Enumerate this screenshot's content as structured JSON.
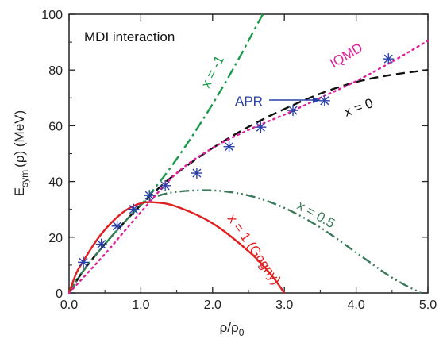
{
  "chart_data": {
    "type": "line",
    "xlabel": "ρ/ρ0",
    "ylabel": "Esym(ρ) (MeV)",
    "xlabel_parts": {
      "main": "ρ/ρ",
      "sub": "0"
    },
    "ylabel_parts": {
      "main": "E",
      "sub": "sym",
      "rest": "(ρ) (MeV)"
    },
    "xlim": [
      0,
      5
    ],
    "ylim": [
      0,
      100
    ],
    "xticks": [
      "0.0",
      "1.0",
      "2.0",
      "3.0",
      "4.0",
      "5.0"
    ],
    "yticks": [
      "0",
      "20",
      "40",
      "60",
      "80",
      "100"
    ],
    "grid": false,
    "inset_label": "MDI interaction",
    "series": [
      {
        "name": "x = -1",
        "color": "#1a9a4a",
        "dash": "dashdot",
        "x": [
          0,
          0.1,
          0.2,
          0.3,
          0.4,
          0.6,
          0.8,
          1.0,
          1.2,
          1.4,
          1.6,
          1.8,
          2.0,
          2.2,
          2.4,
          2.6,
          2.7
        ],
        "y": [
          0,
          4.5,
          8,
          11.3,
          14.5,
          20.5,
          26.2,
          31.6,
          37.8,
          44.5,
          51.8,
          59.6,
          67.8,
          76.5,
          85.7,
          95.3,
          100
        ]
      },
      {
        "name": "x = 0",
        "color": "#111111",
        "dash": "dashed",
        "x": [
          0,
          0.2,
          0.4,
          0.6,
          0.8,
          1.0,
          1.2,
          1.5,
          2.0,
          2.5,
          3.0,
          3.5,
          4.0,
          4.5,
          5.0
        ],
        "y": [
          0,
          8,
          14.5,
          20.5,
          26.2,
          31.6,
          36.5,
          43,
          52,
          59.6,
          66,
          71.5,
          75.7,
          78.3,
          80
        ]
      },
      {
        "name": "x = 0.5",
        "color": "#3a7a5a",
        "dash": "dashdotdot",
        "x": [
          0,
          0.2,
          0.4,
          0.6,
          0.8,
          1.0,
          1.2,
          1.5,
          2.0,
          2.5,
          3.0,
          3.5,
          4.0,
          4.5,
          4.9
        ],
        "y": [
          0,
          8,
          14.5,
          20.5,
          26.2,
          31.6,
          34.5,
          36.3,
          36.8,
          35,
          30.5,
          23.5,
          14.5,
          5.5,
          0
        ]
      },
      {
        "name": "x = 1 (Gogny)",
        "color": "#e02020",
        "dash": "solid",
        "x": [
          0,
          0.1,
          0.2,
          0.4,
          0.6,
          0.8,
          1.0,
          1.2,
          1.5,
          2.0,
          2.5,
          2.8,
          3.0
        ],
        "y": [
          0,
          7,
          11.5,
          19.5,
          25.5,
          29.8,
          32.2,
          32.5,
          31,
          25,
          15,
          7,
          0
        ]
      },
      {
        "name": "IQMD",
        "color": "#e0209a",
        "dash": "dotted",
        "x": [
          0,
          0.5,
          1.0,
          1.5,
          2.0,
          2.5,
          3.0,
          3.5,
          4.0,
          4.5,
          5.0
        ],
        "y": [
          0,
          14,
          29,
          43,
          52,
          58.5,
          64,
          70,
          76,
          83,
          90.5
        ]
      },
      {
        "name": "APR",
        "color": "#2a40a8",
        "type": "scatter",
        "x": [
          0.2,
          0.45,
          0.67,
          0.9,
          1.12,
          1.34,
          1.78,
          2.23,
          2.67,
          3.12,
          3.56,
          4.45
        ],
        "y": [
          11,
          17.5,
          24,
          30,
          35,
          38.5,
          43,
          52.5,
          59.5,
          65.5,
          69,
          84
        ]
      }
    ],
    "annotations": [
      {
        "text": "x = -1",
        "color": "#1a9a4a"
      },
      {
        "text": "IQMD",
        "color": "#e0209a"
      },
      {
        "text": "APR",
        "color": "#2a40a8"
      },
      {
        "text": "x = 0",
        "color": "#111111"
      },
      {
        "text": "x = 0.5",
        "color": "#3a7a5a"
      },
      {
        "text": "x = 1 (Gogny)",
        "color": "#e02020"
      }
    ]
  }
}
